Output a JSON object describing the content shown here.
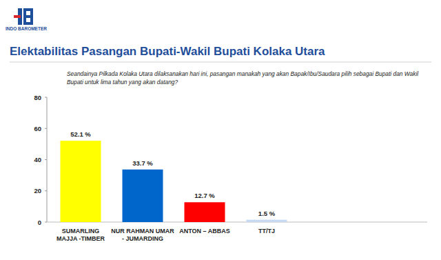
{
  "chart_data": {
    "type": "bar",
    "title": "Elektabilitas Pasangan Bupati-Wakil Bupati Kolaka Utara",
    "subtitle": "Seandainya Pilkada Kolaka Utara dilaksanakan hari ini, pasangan manakah yang akan Bapak/Ibu/Saudara pilih sebagai Bupati dan Wakil Bupati untuk lima tahun yang akan datang?",
    "annotations": [
      "INDO BAROMETER"
    ],
    "categories": [
      "SUMARLING\nMAJJA -TIMBER",
      "NUR RAHMAN UMAR\n- JUMARDING",
      "ANTON – ABBAS",
      "TT/TJ"
    ],
    "values": [
      52.1,
      33.7,
      12.7,
      1.5
    ],
    "value_labels": [
      "52.1 %",
      "33.7 %",
      "12.7 %",
      "1.5 %"
    ],
    "colors": [
      "#ffff00",
      "#0066cc",
      "#ff0000",
      "#c6d9f1"
    ],
    "ylim": [
      0,
      80
    ],
    "yticks": [
      0,
      20,
      40,
      60,
      80
    ],
    "grid": false,
    "data_labels": true
  }
}
